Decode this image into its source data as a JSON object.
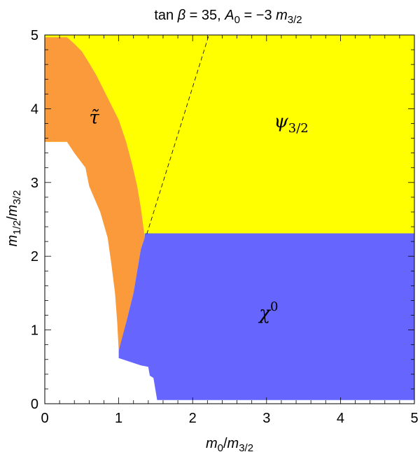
{
  "chart_data": {
    "type": "area",
    "title": {
      "pre": "tan ",
      "beta": "β",
      "mid": " = 35, ",
      "A": "A",
      "Asub": "0",
      "post": " = −3 ",
      "m": "m",
      "msub": "3/2"
    },
    "xlabel": {
      "m": "m",
      "sub1": "0",
      "slash": "/",
      "m2": "m",
      "sub2": "3/2"
    },
    "ylabel": {
      "m": "m",
      "sub1": "1/2",
      "slash": "/",
      "m2": "m",
      "sub2": "3/2"
    },
    "xlim": [
      0,
      5
    ],
    "ylim": [
      0,
      5
    ],
    "xticks": [
      "0",
      "1",
      "2",
      "3",
      "4",
      "5"
    ],
    "yticks": [
      "0",
      "1",
      "2",
      "3",
      "4",
      "5"
    ],
    "grid": false,
    "colors": {
      "stau": "#fa9a3a",
      "gravitino": "#ffff00",
      "neutralino": "#6666ff"
    },
    "regions": [
      {
        "name": "gravitino",
        "label": {
          "main": "ψ",
          "sub": "3/2"
        },
        "label_pos": [
          3.1,
          3.75
        ],
        "polygon": [
          [
            0.0,
            5.0
          ],
          [
            5.0,
            5.0
          ],
          [
            5.0,
            2.31
          ],
          [
            1.35,
            2.31
          ],
          [
            1.33,
            2.2
          ],
          [
            1.0,
            3.55
          ],
          [
            0.0,
            3.55
          ]
        ]
      },
      {
        "name": "stau",
        "label": {
          "main": "τ̃",
          "sub": ""
        },
        "label_pos": [
          0.6,
          3.8
        ],
        "polygon": [
          [
            0.0,
            4.97
          ],
          [
            0.3,
            4.97
          ],
          [
            0.4,
            4.88
          ],
          [
            0.5,
            4.78
          ],
          [
            0.6,
            4.62
          ],
          [
            0.7,
            4.45
          ],
          [
            0.8,
            4.25
          ],
          [
            0.9,
            4.05
          ],
          [
            1.0,
            3.85
          ],
          [
            1.1,
            3.55
          ],
          [
            1.18,
            3.25
          ],
          [
            1.25,
            2.95
          ],
          [
            1.3,
            2.65
          ],
          [
            1.34,
            2.35
          ],
          [
            1.35,
            2.25
          ],
          [
            1.3,
            2.1
          ],
          [
            1.2,
            1.5
          ],
          [
            1.1,
            1.1
          ],
          [
            1.02,
            0.72
          ],
          [
            1.0,
            0.72
          ],
          [
            0.98,
            1.1
          ],
          [
            0.95,
            1.5
          ],
          [
            0.9,
            1.9
          ],
          [
            0.85,
            2.25
          ],
          [
            0.75,
            2.6
          ],
          [
            0.6,
            2.95
          ],
          [
            0.55,
            3.2
          ],
          [
            0.4,
            3.4
          ],
          [
            0.3,
            3.55
          ],
          [
            0.0,
            3.55
          ]
        ]
      },
      {
        "name": "neutralino",
        "label": {
          "main": "χ",
          "sup": "0"
        },
        "label_pos": [
          2.9,
          1.15
        ],
        "polygon": [
          [
            1.35,
            2.31
          ],
          [
            5.0,
            2.31
          ],
          [
            5.0,
            0.05
          ],
          [
            1.52,
            0.05
          ],
          [
            1.47,
            0.35
          ],
          [
            1.42,
            0.38
          ],
          [
            1.4,
            0.5
          ],
          [
            1.3,
            0.52
          ],
          [
            1.0,
            0.62
          ],
          [
            1.0,
            0.72
          ],
          [
            1.1,
            1.1
          ],
          [
            1.2,
            1.5
          ],
          [
            1.3,
            2.1
          ],
          [
            1.35,
            2.25
          ]
        ]
      }
    ],
    "dashed_line": [
      [
        1.38,
        2.3
      ],
      [
        2.22,
        5.0
      ]
    ]
  }
}
